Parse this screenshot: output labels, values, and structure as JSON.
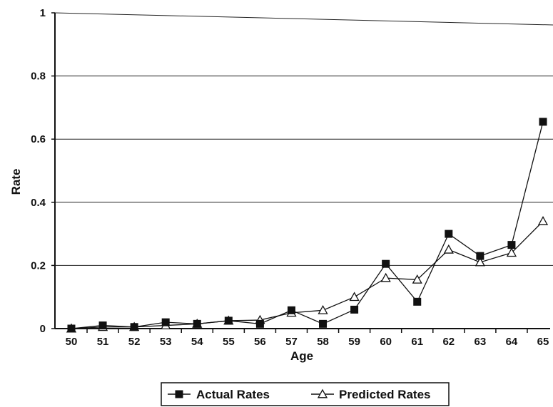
{
  "chart_data": {
    "type": "line",
    "title": "",
    "xlabel": "Age",
    "ylabel": "Rate",
    "categories": [
      "50",
      "51",
      "52",
      "53",
      "54",
      "55",
      "56",
      "57",
      "58",
      "59",
      "60",
      "61",
      "62",
      "63",
      "64",
      "65"
    ],
    "ylim": [
      0,
      1
    ],
    "yticks": [
      "0",
      "0.2",
      "0.4",
      "0.6",
      "0.8",
      "1"
    ],
    "grid": "horizontal",
    "legend_position": "bottom",
    "series": [
      {
        "name": "Actual Rates",
        "marker": "filled-square",
        "values": [
          0.0,
          0.01,
          0.005,
          0.02,
          0.015,
          0.025,
          0.015,
          0.058,
          0.015,
          0.06,
          0.205,
          0.085,
          0.3,
          0.23,
          0.265,
          0.655
        ]
      },
      {
        "name": "Predicted Rates",
        "marker": "open-triangle",
        "values": [
          0.0,
          0.005,
          0.005,
          0.01,
          0.015,
          0.025,
          0.027,
          0.05,
          0.058,
          0.1,
          0.16,
          0.155,
          0.25,
          0.21,
          0.24,
          0.34
        ]
      }
    ]
  }
}
